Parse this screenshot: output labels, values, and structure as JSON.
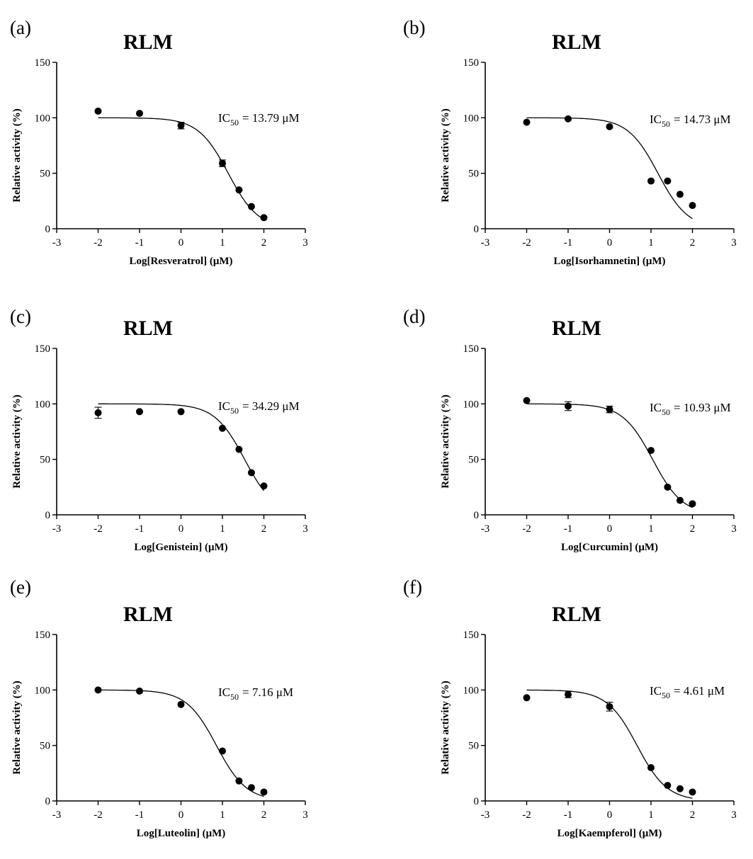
{
  "chart_data": [
    {
      "type": "scatter",
      "panel_label": "(a)",
      "title": "RLM",
      "xlabel": "Log[Resveratrol] (μM)",
      "ylabel": "Relative activity (%)",
      "xlim": [
        -3,
        3
      ],
      "ylim": [
        0,
        150
      ],
      "xticks": [
        -3,
        -2,
        -1,
        0,
        1,
        2,
        3
      ],
      "yticks": [
        0,
        50,
        100,
        150
      ],
      "ic50_prefix": "IC",
      "ic50_sub": "50",
      "ic50_value": "= 13.79 μM",
      "ic50_uM": 13.79,
      "fit": {
        "top": 100,
        "bottom": 0,
        "hill": 1.2
      },
      "points": [
        {
          "x": -2,
          "y": 106,
          "err": 0
        },
        {
          "x": -1,
          "y": 104,
          "err": 0
        },
        {
          "x": 0,
          "y": 93,
          "err": 3
        },
        {
          "x": 1,
          "y": 59,
          "err": 3
        },
        {
          "x": 1.4,
          "y": 35,
          "err": 0
        },
        {
          "x": 1.7,
          "y": 20,
          "err": 0
        },
        {
          "x": 2,
          "y": 10,
          "err": 0
        }
      ]
    },
    {
      "type": "scatter",
      "panel_label": "(b)",
      "title": "RLM",
      "xlabel": "Log[Isorhamnetin] (μM)",
      "ylabel": "Relative activity (%)",
      "xlim": [
        -3,
        3
      ],
      "ylim": [
        0,
        150
      ],
      "xticks": [
        -3,
        -2,
        -1,
        0,
        1,
        2,
        3
      ],
      "yticks": [
        0,
        50,
        100,
        150
      ],
      "ic50_prefix": "IC",
      "ic50_sub": "50",
      "ic50_value": "= 14.73 μM",
      "ic50_uM": 14.73,
      "fit": {
        "top": 100,
        "bottom": 0,
        "hill": 1.2
      },
      "points": [
        {
          "x": -2,
          "y": 96,
          "err": 0
        },
        {
          "x": -1,
          "y": 99,
          "err": 0
        },
        {
          "x": 0,
          "y": 92,
          "err": 0
        },
        {
          "x": 1,
          "y": 43,
          "err": 0
        },
        {
          "x": 1.4,
          "y": 43,
          "err": 0
        },
        {
          "x": 1.7,
          "y": 31,
          "err": 0
        },
        {
          "x": 2,
          "y": 21,
          "err": 0
        }
      ]
    },
    {
      "type": "scatter",
      "panel_label": "(c)",
      "title": "RLM",
      "xlabel": "Log[Genistein] (μM)",
      "ylabel": "Relative activity (%)",
      "xlim": [
        -3,
        3
      ],
      "ylim": [
        0,
        150
      ],
      "xticks": [
        -3,
        -2,
        -1,
        0,
        1,
        2,
        3
      ],
      "yticks": [
        0,
        50,
        100,
        150
      ],
      "ic50_prefix": "IC",
      "ic50_sub": "50",
      "ic50_value": "= 34.29 μM",
      "ic50_uM": 34.29,
      "fit": {
        "top": 100,
        "bottom": 0,
        "hill": 1.2
      },
      "points": [
        {
          "x": -2,
          "y": 92,
          "err": 5
        },
        {
          "x": -1,
          "y": 93,
          "err": 0
        },
        {
          "x": 0,
          "y": 93,
          "err": 0
        },
        {
          "x": 1,
          "y": 78,
          "err": 0
        },
        {
          "x": 1.4,
          "y": 59,
          "err": 0
        },
        {
          "x": 1.7,
          "y": 38,
          "err": 0
        },
        {
          "x": 2,
          "y": 26,
          "err": 0
        }
      ]
    },
    {
      "type": "scatter",
      "panel_label": "(d)",
      "title": "RLM",
      "xlabel": "Log[Curcumin] (μM)",
      "ylabel": "Relative activity (%)",
      "xlim": [
        -3,
        3
      ],
      "ylim": [
        0,
        150
      ],
      "xticks": [
        -3,
        -2,
        -1,
        0,
        1,
        2,
        3
      ],
      "yticks": [
        0,
        50,
        100,
        150
      ],
      "ic50_prefix": "IC",
      "ic50_sub": "50",
      "ic50_value": "= 10.93 μM",
      "ic50_uM": 10.93,
      "fit": {
        "top": 100,
        "bottom": 0,
        "hill": 1.2
      },
      "points": [
        {
          "x": -2,
          "y": 103,
          "err": 0
        },
        {
          "x": -1,
          "y": 98,
          "err": 4
        },
        {
          "x": 0,
          "y": 95,
          "err": 3
        },
        {
          "x": 1,
          "y": 58,
          "err": 0
        },
        {
          "x": 1.4,
          "y": 25,
          "err": 0
        },
        {
          "x": 1.7,
          "y": 13,
          "err": 0
        },
        {
          "x": 2,
          "y": 10,
          "err": 0
        }
      ]
    },
    {
      "type": "scatter",
      "panel_label": "(e)",
      "title": "RLM",
      "xlabel": "Log[Luteolin] (μM)",
      "ylabel": "Relative activity (%)",
      "xlim": [
        -3,
        3
      ],
      "ylim": [
        0,
        150
      ],
      "xticks": [
        -3,
        -2,
        -1,
        0,
        1,
        2,
        3
      ],
      "yticks": [
        0,
        50,
        100,
        150
      ],
      "ic50_prefix": "IC",
      "ic50_sub": "50",
      "ic50_value": "= 7.16 μM",
      "ic50_uM": 7.16,
      "fit": {
        "top": 100,
        "bottom": 0,
        "hill": 1.2
      },
      "points": [
        {
          "x": -2,
          "y": 100,
          "err": 0
        },
        {
          "x": -1,
          "y": 99,
          "err": 0
        },
        {
          "x": 0,
          "y": 87,
          "err": 0
        },
        {
          "x": 1,
          "y": 45,
          "err": 0
        },
        {
          "x": 1.4,
          "y": 18,
          "err": 0
        },
        {
          "x": 1.7,
          "y": 12,
          "err": 0
        },
        {
          "x": 2,
          "y": 8,
          "err": 0
        }
      ]
    },
    {
      "type": "scatter",
      "panel_label": "(f)",
      "title": "RLM",
      "xlabel": "Log[Kaempferol] (μM)",
      "ylabel": "Relative activity (%)",
      "xlim": [
        -3,
        3
      ],
      "ylim": [
        0,
        150
      ],
      "xticks": [
        -3,
        -2,
        -1,
        0,
        1,
        2,
        3
      ],
      "yticks": [
        0,
        50,
        100,
        150
      ],
      "ic50_prefix": "IC",
      "ic50_sub": "50",
      "ic50_value": "= 4.61 μM",
      "ic50_uM": 4.61,
      "fit": {
        "top": 100,
        "bottom": 0,
        "hill": 1.2
      },
      "points": [
        {
          "x": -2,
          "y": 93,
          "err": 0
        },
        {
          "x": -1,
          "y": 96,
          "err": 3
        },
        {
          "x": 0,
          "y": 85,
          "err": 4
        },
        {
          "x": 1,
          "y": 30,
          "err": 0
        },
        {
          "x": 1.4,
          "y": 14,
          "err": 0
        },
        {
          "x": 1.7,
          "y": 11,
          "err": 0
        },
        {
          "x": 2,
          "y": 8,
          "err": 0
        }
      ]
    }
  ]
}
